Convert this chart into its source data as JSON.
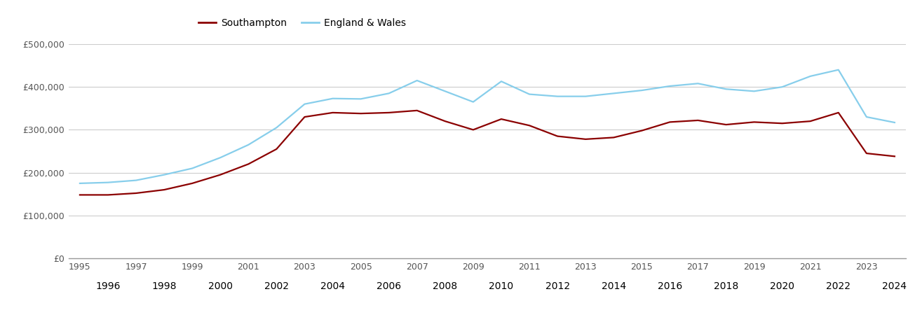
{
  "years": [
    1995,
    1996,
    1997,
    1998,
    1999,
    2000,
    2001,
    2002,
    2003,
    2004,
    2005,
    2006,
    2007,
    2008,
    2009,
    2010,
    2011,
    2012,
    2013,
    2014,
    2015,
    2016,
    2017,
    2018,
    2019,
    2020,
    2021,
    2022,
    2023,
    2024
  ],
  "southampton": [
    148000,
    148000,
    152000,
    160000,
    175000,
    195000,
    220000,
    255000,
    330000,
    340000,
    338000,
    340000,
    345000,
    320000,
    300000,
    325000,
    310000,
    285000,
    278000,
    282000,
    298000,
    318000,
    322000,
    312000,
    318000,
    315000,
    320000,
    340000,
    245000,
    238000
  ],
  "england_wales": [
    175000,
    177000,
    182000,
    195000,
    210000,
    235000,
    265000,
    305000,
    360000,
    373000,
    372000,
    385000,
    415000,
    390000,
    365000,
    413000,
    383000,
    378000,
    378000,
    385000,
    392000,
    402000,
    408000,
    395000,
    390000,
    400000,
    425000,
    440000,
    330000,
    317000
  ],
  "southampton_color": "#8B0000",
  "england_wales_color": "#87CEEB",
  "background_color": "#ffffff",
  "grid_color": "#cccccc",
  "ylim": [
    0,
    500000
  ],
  "yticks": [
    0,
    100000,
    200000,
    300000,
    400000,
    500000
  ],
  "ytick_labels": [
    "£0",
    "£100,000",
    "£200,000",
    "£300,000",
    "£400,000",
    "£500,000"
  ],
  "legend_southampton": "Southampton",
  "legend_england_wales": "England & Wales",
  "line_width": 1.6,
  "odd_years": [
    1995,
    1997,
    1999,
    2001,
    2003,
    2005,
    2007,
    2009,
    2011,
    2013,
    2015,
    2017,
    2019,
    2021,
    2023
  ],
  "even_years": [
    1996,
    1998,
    2000,
    2002,
    2004,
    2006,
    2008,
    2010,
    2012,
    2014,
    2016,
    2018,
    2020,
    2022,
    2024
  ]
}
